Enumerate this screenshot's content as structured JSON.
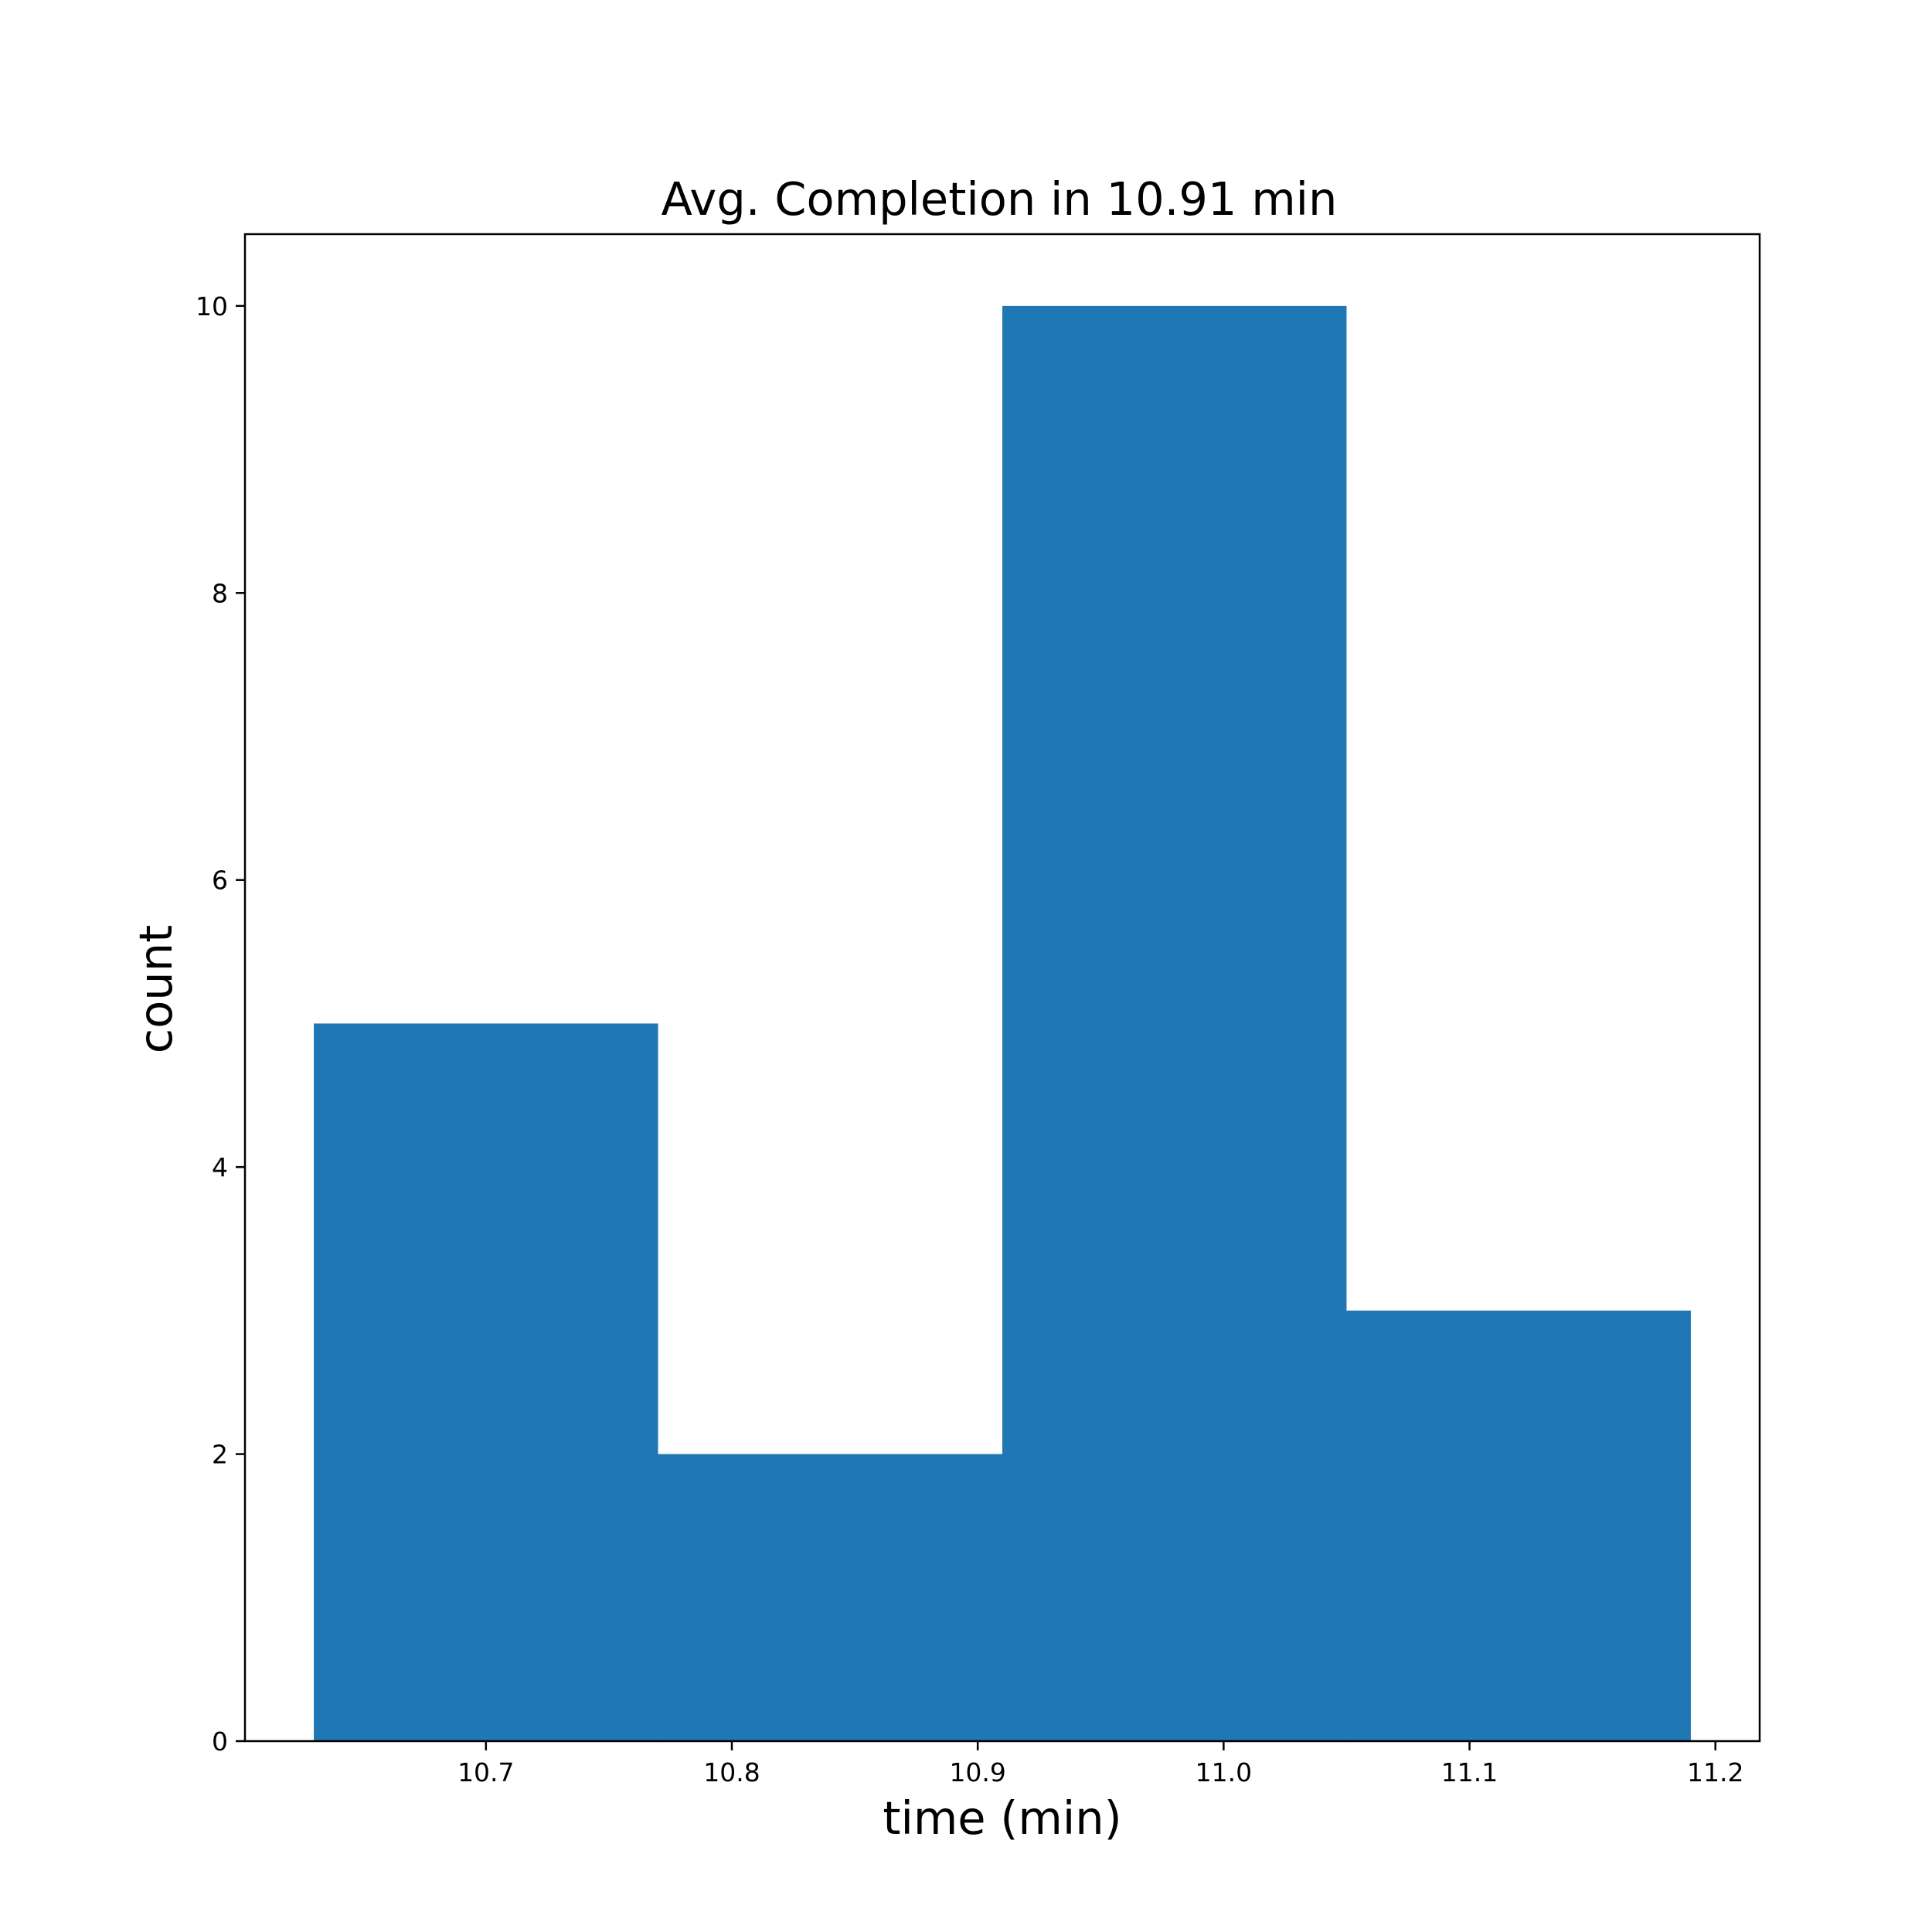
{
  "chart_data": {
    "type": "histogram",
    "title": "Avg. Completion in 10.91 min",
    "xlabel": "time (min)",
    "ylabel": "count",
    "bins": [
      {
        "start": 10.63,
        "end": 10.77,
        "count": 5
      },
      {
        "start": 10.77,
        "end": 10.91,
        "count": 2
      },
      {
        "start": 10.91,
        "end": 11.05,
        "count": 10
      },
      {
        "start": 11.05,
        "end": 11.19,
        "count": 3
      }
    ],
    "xlim": [
      10.602,
      11.218
    ],
    "ylim": [
      0,
      10.5
    ],
    "xticks": [
      {
        "value": 10.7,
        "label": "10.7"
      },
      {
        "value": 10.8,
        "label": "10.8"
      },
      {
        "value": 10.9,
        "label": "10.9"
      },
      {
        "value": 11.0,
        "label": "11.0"
      },
      {
        "value": 11.1,
        "label": "11.1"
      },
      {
        "value": 11.2,
        "label": "11.2"
      }
    ],
    "yticks": [
      {
        "value": 0,
        "label": "0"
      },
      {
        "value": 2,
        "label": "2"
      },
      {
        "value": 4,
        "label": "4"
      },
      {
        "value": 6,
        "label": "6"
      },
      {
        "value": 8,
        "label": "8"
      },
      {
        "value": 10,
        "label": "10"
      }
    ],
    "bar_color": "#1f77b4",
    "grid": false
  }
}
